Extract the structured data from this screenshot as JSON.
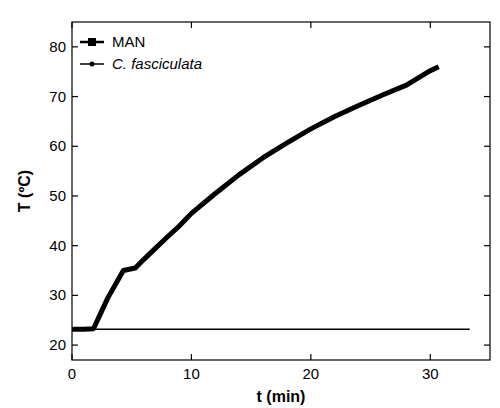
{
  "chart_data": {
    "type": "line",
    "x_label": "t (min)",
    "y_label": "T (ºC)",
    "xlim": [
      0,
      35
    ],
    "xticks": [
      0,
      10,
      20,
      30
    ],
    "ylim": [
      17,
      85
    ],
    "yticks": [
      20,
      30,
      40,
      50,
      60,
      70,
      80
    ],
    "legend": "upper-left",
    "grid": false,
    "series": [
      {
        "name": "MAN",
        "color": "#000000",
        "marker": "square",
        "line_style": "solid",
        "x": [
          0,
          1,
          1.8,
          3,
          4.3,
          5.3,
          6,
          7,
          8,
          9,
          10,
          12,
          14,
          16,
          18,
          20,
          22,
          24,
          26,
          28,
          30,
          30.7
        ],
        "values": [
          23.2,
          23.2,
          23.3,
          29.5,
          35,
          35.5,
          37.2,
          39.5,
          41.8,
          44,
          46.5,
          50.5,
          54.3,
          57.7,
          60.7,
          63.5,
          66,
          68.2,
          70.3,
          72.3,
          75.2,
          76
        ]
      },
      {
        "name": "C. fasciculata",
        "color": "#000000",
        "marker": "circle",
        "line_style": "solid",
        "x": [
          0,
          33.3
        ],
        "values": [
          23.2,
          23.2
        ]
      }
    ]
  }
}
